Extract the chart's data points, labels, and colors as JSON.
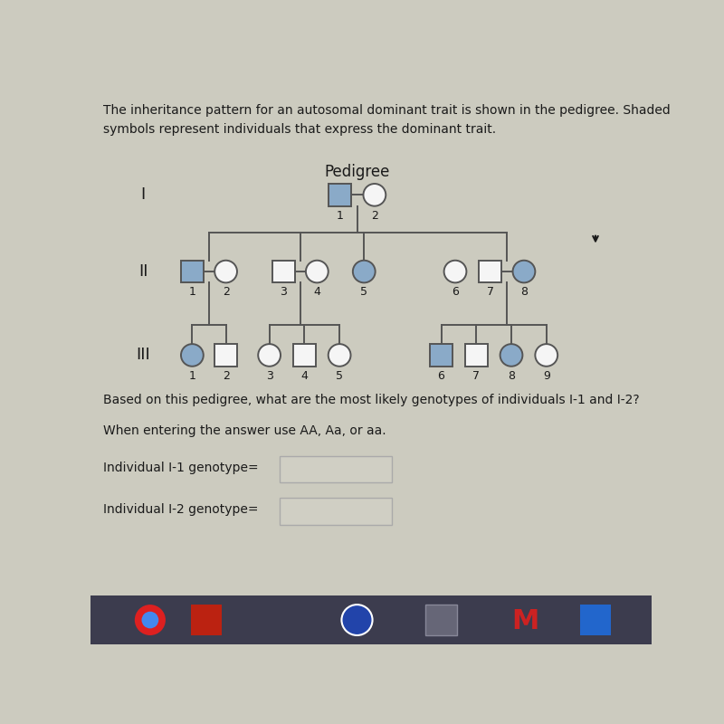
{
  "title": "Pedigree",
  "bg_color": "#cccbbf",
  "text_color": "#1a1a1a",
  "header_line1": "The inheritance pattern for an autosomal dominant trait is shown in the pedigree. Shaded",
  "header_line2": "symbols represent individuals that express the dominant trait.",
  "question_text": "Based on this pedigree, what are the most likely genotypes of individuals I-1 and I-2?",
  "instruction_text": "When entering the answer use AA, Aa, or aa.",
  "label1_text": "Individual I-1 genotype=",
  "label2_text": "Individual I-2 genotype=",
  "shaded_color": "#8aaac8",
  "unshaded_color": "#f5f5f5",
  "border_color": "#555555",
  "taskbar_color": "#3c3c4e",
  "input_box_color": "#d0cfc4",
  "input_box_border": "#aaaaaa",
  "cursor_color": "#222222"
}
